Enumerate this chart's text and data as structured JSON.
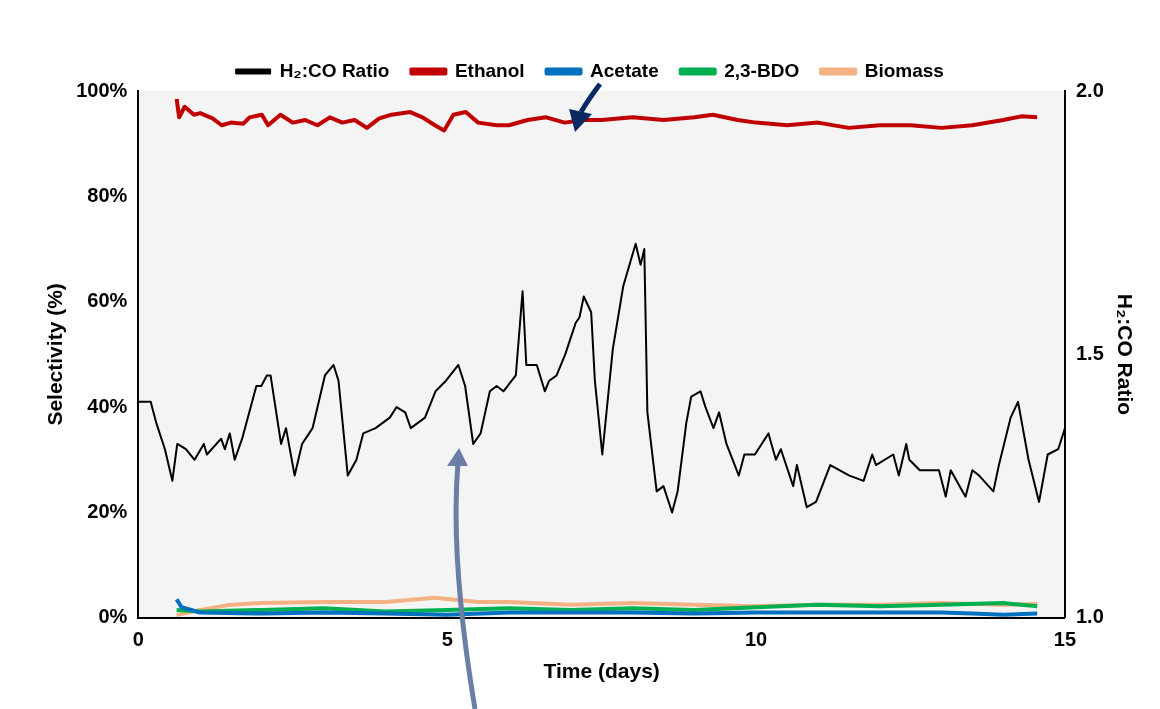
{
  "chart_data": {
    "type": "line",
    "xlabel": "Time (days)",
    "ylabel": "Selectivity (%)",
    "y2label": "H₂:CO Ratio",
    "xlim": [
      0,
      15
    ],
    "xticks": [
      0,
      5,
      10,
      15
    ],
    "ylim": [
      0,
      100
    ],
    "yticks": [
      {
        "value": 0,
        "label": "0%"
      },
      {
        "value": 20,
        "label": "20%"
      },
      {
        "value": 40,
        "label": "40%"
      },
      {
        "value": 60,
        "label": "60%"
      },
      {
        "value": 80,
        "label": "80%"
      },
      {
        "value": 100,
        "label": "100%"
      }
    ],
    "y2lim": [
      1,
      2
    ],
    "y2ticks": [
      {
        "value": 1,
        "label": "1.0"
      },
      {
        "value": 1.5,
        "label": "1.5"
      },
      {
        "value": 2,
        "label": "2.0"
      }
    ],
    "grid": false,
    "legend": "top",
    "marker": "none",
    "series": [
      {
        "name": "H₂:CO Ratio",
        "color": "#000000",
        "axis": "y2",
        "x": [
          0,
          0.2,
          0.29,
          0.43,
          0.55,
          0.63,
          0.77,
          0.91,
          1.06,
          1.11,
          1.34,
          1.4,
          1.48,
          1.56,
          1.68,
          1.91,
          1.99,
          2.08,
          2.14,
          2.31,
          2.39,
          2.53,
          2.65,
          2.82,
          3.02,
          3.16,
          3.24,
          3.39,
          3.53,
          3.64,
          3.84,
          4.07,
          4.18,
          4.32,
          4.41,
          4.64,
          4.81,
          4.98,
          5.18,
          5.29,
          5.42,
          5.54,
          5.69,
          5.8,
          5.91,
          6.11,
          6.22,
          6.28,
          6.45,
          6.58,
          6.65,
          6.77,
          6.91,
          7.08,
          7.14,
          7.21,
          7.33,
          7.39,
          7.51,
          7.68,
          7.85,
          8.05,
          8.13,
          8.19,
          8.24,
          8.39,
          8.5,
          8.64,
          8.73,
          8.87,
          8.95,
          9.1,
          9.18,
          9.31,
          9.4,
          9.52,
          9.72,
          9.81,
          9.98,
          10.2,
          10.32,
          10.4,
          10.6,
          10.66,
          10.82,
          10.97,
          11.2,
          11.51,
          11.74,
          11.88,
          11.94,
          12.22,
          12.31,
          12.43,
          12.48,
          12.65,
          12.96,
          13.07,
          13.15,
          13.39,
          13.5,
          13.61,
          13.84,
          13.93,
          14.12,
          14.24,
          14.41,
          14.58,
          14.72,
          14.89,
          15
        ],
        "values": [
          1.41,
          1.41,
          1.37,
          1.32,
          1.26,
          1.33,
          1.32,
          1.3,
          1.33,
          1.31,
          1.34,
          1.32,
          1.35,
          1.3,
          1.34,
          1.44,
          1.44,
          1.46,
          1.46,
          1.33,
          1.36,
          1.27,
          1.33,
          1.36,
          1.46,
          1.48,
          1.45,
          1.27,
          1.3,
          1.35,
          1.36,
          1.38,
          1.4,
          1.39,
          1.36,
          1.38,
          1.43,
          1.45,
          1.48,
          1.44,
          1.33,
          1.35,
          1.43,
          1.44,
          1.43,
          1.46,
          1.62,
          1.48,
          1.48,
          1.43,
          1.45,
          1.46,
          1.5,
          1.56,
          1.57,
          1.61,
          1.58,
          1.45,
          1.31,
          1.51,
          1.63,
          1.71,
          1.67,
          1.7,
          1.39,
          1.24,
          1.25,
          1.2,
          1.24,
          1.37,
          1.42,
          1.43,
          1.4,
          1.36,
          1.39,
          1.33,
          1.27,
          1.31,
          1.31,
          1.35,
          1.3,
          1.32,
          1.25,
          1.29,
          1.21,
          1.22,
          1.29,
          1.27,
          1.26,
          1.31,
          1.29,
          1.31,
          1.27,
          1.33,
          1.3,
          1.28,
          1.28,
          1.23,
          1.28,
          1.23,
          1.28,
          1.27,
          1.24,
          1.29,
          1.38,
          1.41,
          1.3,
          1.22,
          1.31,
          1.32,
          1.36
        ]
      },
      {
        "name": "Ethanol",
        "color": "#c00000",
        "x": [
          0.62,
          0.66,
          0.75,
          0.9,
          1,
          1.2,
          1.35,
          1.5,
          1.7,
          1.8,
          2,
          2.1,
          2.3,
          2.5,
          2.7,
          2.9,
          3.1,
          3.3,
          3.5,
          3.7,
          3.9,
          4.1,
          4.4,
          4.6,
          4.8,
          4.95,
          5.1,
          5.3,
          5.5,
          5.8,
          6,
          6.3,
          6.6,
          6.9,
          7.2,
          7.5,
          8,
          8.5,
          9,
          9.3,
          9.7,
          10,
          10.5,
          11,
          11.5,
          12,
          12.5,
          13,
          13.5,
          14,
          14.3,
          14.55
        ],
        "values": [
          98.5,
          95,
          97,
          95.5,
          95.8,
          94.8,
          93.5,
          94,
          93.8,
          95,
          95.5,
          93.5,
          95.5,
          94,
          94.5,
          93.5,
          95,
          94,
          94.5,
          93,
          94.8,
          95.5,
          96,
          95,
          93.5,
          92.5,
          95.5,
          96,
          94,
          93.5,
          93.5,
          94.5,
          95,
          94,
          94.5,
          94.5,
          95,
          94.5,
          95,
          95.5,
          94.5,
          94,
          93.5,
          94,
          93,
          93.5,
          93.5,
          93,
          93.5,
          94.5,
          95.2,
          95
        ]
      },
      {
        "name": "Acetate",
        "color": "#0070c0",
        "x": [
          0.62,
          0.7,
          1,
          2,
          3,
          4,
          5,
          6,
          7,
          8,
          9,
          10,
          11,
          12,
          13,
          13.5,
          14,
          14.55
        ],
        "values": [
          3.5,
          2,
          1,
          0.8,
          1,
          0.8,
          0.6,
          1,
          1,
          1,
          0.8,
          1,
          1,
          1,
          1,
          0.8,
          0.6,
          0.8
        ]
      },
      {
        "name": "2,3-BDO",
        "color": "#00b050",
        "x": [
          0.62,
          1,
          2,
          3,
          4,
          5,
          6,
          7,
          8,
          9,
          10,
          11,
          12,
          13,
          14,
          14.55
        ],
        "values": [
          1.5,
          1.2,
          1.5,
          1.8,
          1.2,
          1.5,
          1.8,
          1.5,
          1.8,
          1.5,
          2,
          2.5,
          2.2,
          2.5,
          2.8,
          2.2
        ]
      },
      {
        "name": "Biomass",
        "color": "#f4b183",
        "x": [
          0.62,
          1,
          1.5,
          2,
          3,
          4,
          4.8,
          5.5,
          6,
          7,
          8,
          9,
          10,
          11,
          12,
          13,
          14,
          14.55
        ],
        "values": [
          0.5,
          1.5,
          2.5,
          2.8,
          3,
          3,
          3.8,
          3,
          3,
          2.5,
          2.8,
          2.5,
          2.2,
          2.5,
          2.5,
          2.8,
          2.5,
          2.6
        ]
      }
    ]
  }
}
